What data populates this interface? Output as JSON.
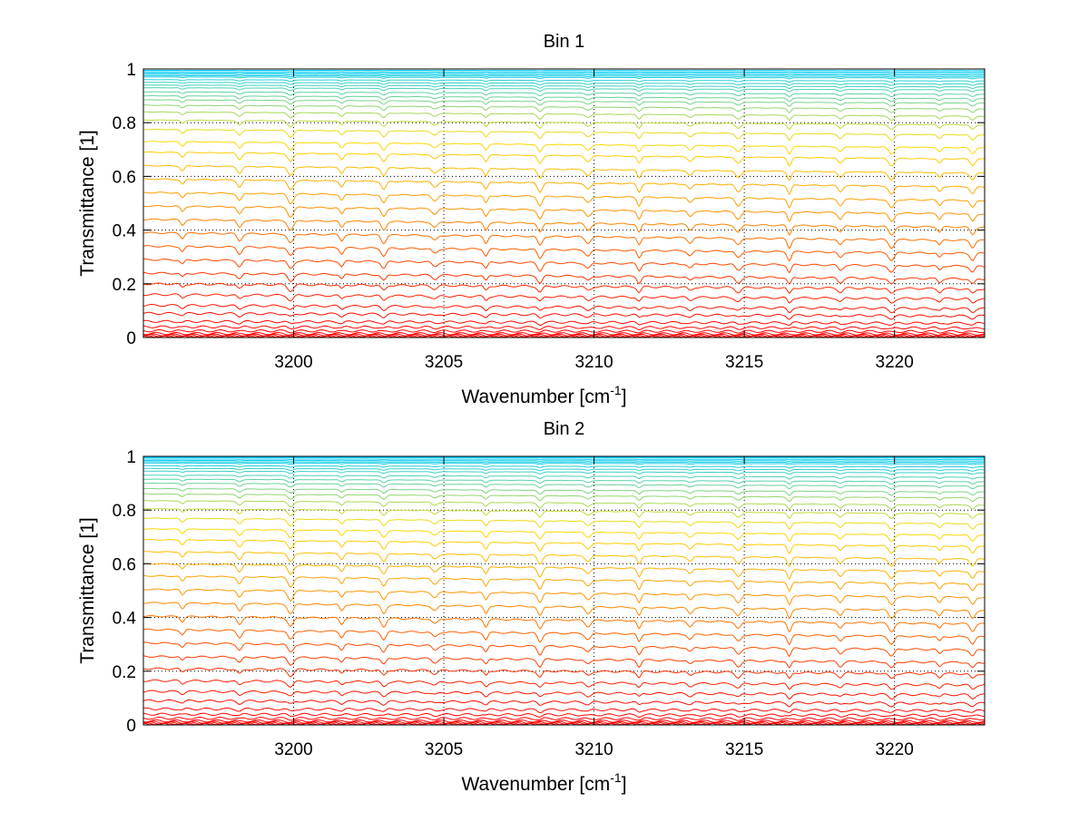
{
  "chart_data": [
    {
      "type": "line",
      "title": "Bin 1",
      "xlabel": "Wavenumber [cm",
      "xlabel_sup": "-1",
      "xlabel_end": "]",
      "ylabel": "Transmittance [1]",
      "xlim": [
        3195,
        3223
      ],
      "ylim": [
        0,
        1
      ],
      "x_ticks": [
        3200,
        3205,
        3210,
        3215,
        3220
      ],
      "y_ticks": [
        0,
        0.2,
        0.4,
        0.6,
        0.8,
        1
      ],
      "x_tick_labels": [
        "3200",
        "3205",
        "3210",
        "3215",
        "3220"
      ],
      "y_tick_labels": [
        "0",
        "0.2",
        "0.4",
        "0.6",
        "0.8",
        "1"
      ],
      "grid": true,
      "series_count": 40,
      "series_baselines": [
        0.995,
        0.99,
        0.985,
        0.98,
        0.975,
        0.97,
        0.96,
        0.95,
        0.94,
        0.93,
        0.915,
        0.9,
        0.885,
        0.865,
        0.84,
        0.81,
        0.775,
        0.73,
        0.69,
        0.64,
        0.59,
        0.54,
        0.49,
        0.44,
        0.39,
        0.34,
        0.29,
        0.24,
        0.2,
        0.16,
        0.12,
        0.09,
        0.06,
        0.04,
        0.025,
        0.015,
        0.01,
        0.007,
        0.004,
        0.002
      ],
      "baseline_slope": "decreasing toward higher wavenumber",
      "absorption_lines_x": [
        3196.3,
        3198.2,
        3199.9,
        3201.6,
        3203.0,
        3204.7,
        3206.4,
        3208.2,
        3209.8,
        3211.5,
        3213.2,
        3214.8,
        3216.5,
        3218.2,
        3219.9,
        3221.5,
        3222.6
      ],
      "color_scale": [
        "#ff0000",
        "#ff8800",
        "#ffdd00",
        "#00ccff"
      ]
    },
    {
      "type": "line",
      "title": "Bin 2",
      "xlabel": "Wavenumber [cm",
      "xlabel_sup": "-1",
      "xlabel_end": "]",
      "ylabel": "Transmittance [1]",
      "xlim": [
        3195,
        3223
      ],
      "ylim": [
        0,
        1
      ],
      "x_ticks": [
        3200,
        3205,
        3210,
        3215,
        3220
      ],
      "y_ticks": [
        0,
        0.2,
        0.4,
        0.6,
        0.8,
        1
      ],
      "x_tick_labels": [
        "3200",
        "3205",
        "3210",
        "3215",
        "3220"
      ],
      "y_tick_labels": [
        "0",
        "0.2",
        "0.4",
        "0.6",
        "0.8",
        "1"
      ],
      "grid": true,
      "series_count": 40,
      "series_baselines": [
        0.998,
        0.995,
        0.99,
        0.985,
        0.98,
        0.975,
        0.965,
        0.955,
        0.945,
        0.93,
        0.915,
        0.9,
        0.88,
        0.86,
        0.835,
        0.805,
        0.77,
        0.73,
        0.69,
        0.645,
        0.6,
        0.555,
        0.505,
        0.455,
        0.405,
        0.355,
        0.305,
        0.255,
        0.21,
        0.165,
        0.125,
        0.09,
        0.06,
        0.04,
        0.025,
        0.015,
        0.01,
        0.007,
        0.004,
        0.002
      ],
      "baseline_slope": "decreasing toward higher wavenumber",
      "absorption_lines_x": [
        3196.3,
        3198.2,
        3199.9,
        3201.6,
        3203.0,
        3204.7,
        3206.4,
        3208.2,
        3209.8,
        3211.5,
        3213.2,
        3214.8,
        3216.5,
        3218.2,
        3219.9,
        3221.5,
        3222.6
      ],
      "color_scale": [
        "#ff0000",
        "#ff8800",
        "#ffdd00",
        "#00ccff"
      ]
    }
  ]
}
